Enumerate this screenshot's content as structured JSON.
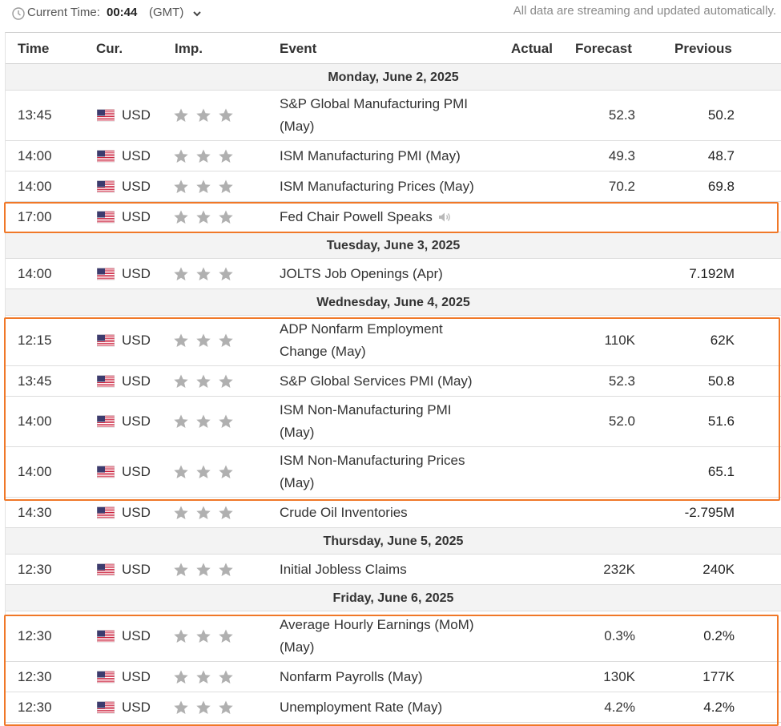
{
  "header": {
    "current_time_label": "Current Time:",
    "current_time_value": "00:44",
    "timezone": "(GMT)",
    "streaming_note": "All data are streaming and updated automatically."
  },
  "columns": {
    "time": "Time",
    "currency": "Cur.",
    "importance": "Imp.",
    "event": "Event",
    "actual": "Actual",
    "forecast": "Forecast",
    "previous": "Previous"
  },
  "accent_color": "#f07828",
  "star_color": "#b0b0b0",
  "days": [
    {
      "label": "Monday, June 2, 2025",
      "events": [
        {
          "time": "13:45",
          "currency": "USD",
          "stars": 3,
          "event_line1": "S&P Global Manufacturing PMI",
          "event_line2": "(May)",
          "actual": "",
          "forecast": "52.3",
          "previous": "50.2"
        },
        {
          "time": "14:00",
          "currency": "USD",
          "stars": 3,
          "event_line1": "ISM Manufacturing PMI (May)",
          "event_line2": "",
          "actual": "",
          "forecast": "49.3",
          "previous": "48.7"
        },
        {
          "time": "14:00",
          "currency": "USD",
          "stars": 3,
          "event_line1": "ISM Manufacturing Prices (May)",
          "event_line2": "",
          "actual": "",
          "forecast": "70.2",
          "previous": "69.8"
        },
        {
          "time": "17:00",
          "currency": "USD",
          "stars": 3,
          "event_line1": "Fed Chair Powell Speaks",
          "event_line2": "",
          "actual": "",
          "forecast": "",
          "previous": "",
          "speaker_icon": "speaker-icon"
        }
      ]
    },
    {
      "label": "Tuesday, June 3, 2025",
      "events": [
        {
          "time": "14:00",
          "currency": "USD",
          "stars": 3,
          "event_line1": "JOLTS Job Openings (Apr)",
          "event_line2": "",
          "actual": "",
          "forecast": "",
          "previous": "7.192M"
        }
      ]
    },
    {
      "label": "Wednesday, June 4, 2025",
      "events": [
        {
          "time": "12:15",
          "currency": "USD",
          "stars": 3,
          "event_line1": "ADP Nonfarm Employment",
          "event_line2": "Change (May)",
          "actual": "",
          "forecast": "110K",
          "previous": "62K"
        },
        {
          "time": "13:45",
          "currency": "USD",
          "stars": 3,
          "event_line1": "S&P Global Services PMI (May)",
          "event_line2": "",
          "actual": "",
          "forecast": "52.3",
          "previous": "50.8"
        },
        {
          "time": "14:00",
          "currency": "USD",
          "stars": 3,
          "event_line1": "ISM Non-Manufacturing PMI",
          "event_line2": "(May)",
          "actual": "",
          "forecast": "52.0",
          "previous": "51.6"
        },
        {
          "time": "14:00",
          "currency": "USD",
          "stars": 3,
          "event_line1": "ISM Non-Manufacturing Prices",
          "event_line2": "(May)",
          "actual": "",
          "forecast": "",
          "previous": "65.1"
        },
        {
          "time": "14:30",
          "currency": "USD",
          "stars": 3,
          "event_line1": "Crude Oil Inventories",
          "event_line2": "",
          "actual": "",
          "forecast": "",
          "previous": "-2.795M"
        }
      ]
    },
    {
      "label": "Thursday, June 5, 2025",
      "events": [
        {
          "time": "12:30",
          "currency": "USD",
          "stars": 3,
          "event_line1": "Initial Jobless Claims",
          "event_line2": "",
          "actual": "",
          "forecast": "232K",
          "previous": "240K"
        }
      ]
    },
    {
      "label": "Friday, June 6, 2025",
      "events": [
        {
          "time": "12:30",
          "currency": "USD",
          "stars": 3,
          "event_line1": "Average Hourly Earnings (MoM)",
          "event_line2": "(May)",
          "actual": "",
          "forecast": "0.3%",
          "previous": "0.2%"
        },
        {
          "time": "12:30",
          "currency": "USD",
          "stars": 3,
          "event_line1": "Nonfarm Payrolls (May)",
          "event_line2": "",
          "actual": "",
          "forecast": "130K",
          "previous": "177K"
        },
        {
          "time": "12:30",
          "currency": "USD",
          "stars": 3,
          "event_line1": "Unemployment Rate (May)",
          "event_line2": "",
          "actual": "",
          "forecast": "4.2%",
          "previous": "4.2%"
        }
      ]
    }
  ]
}
